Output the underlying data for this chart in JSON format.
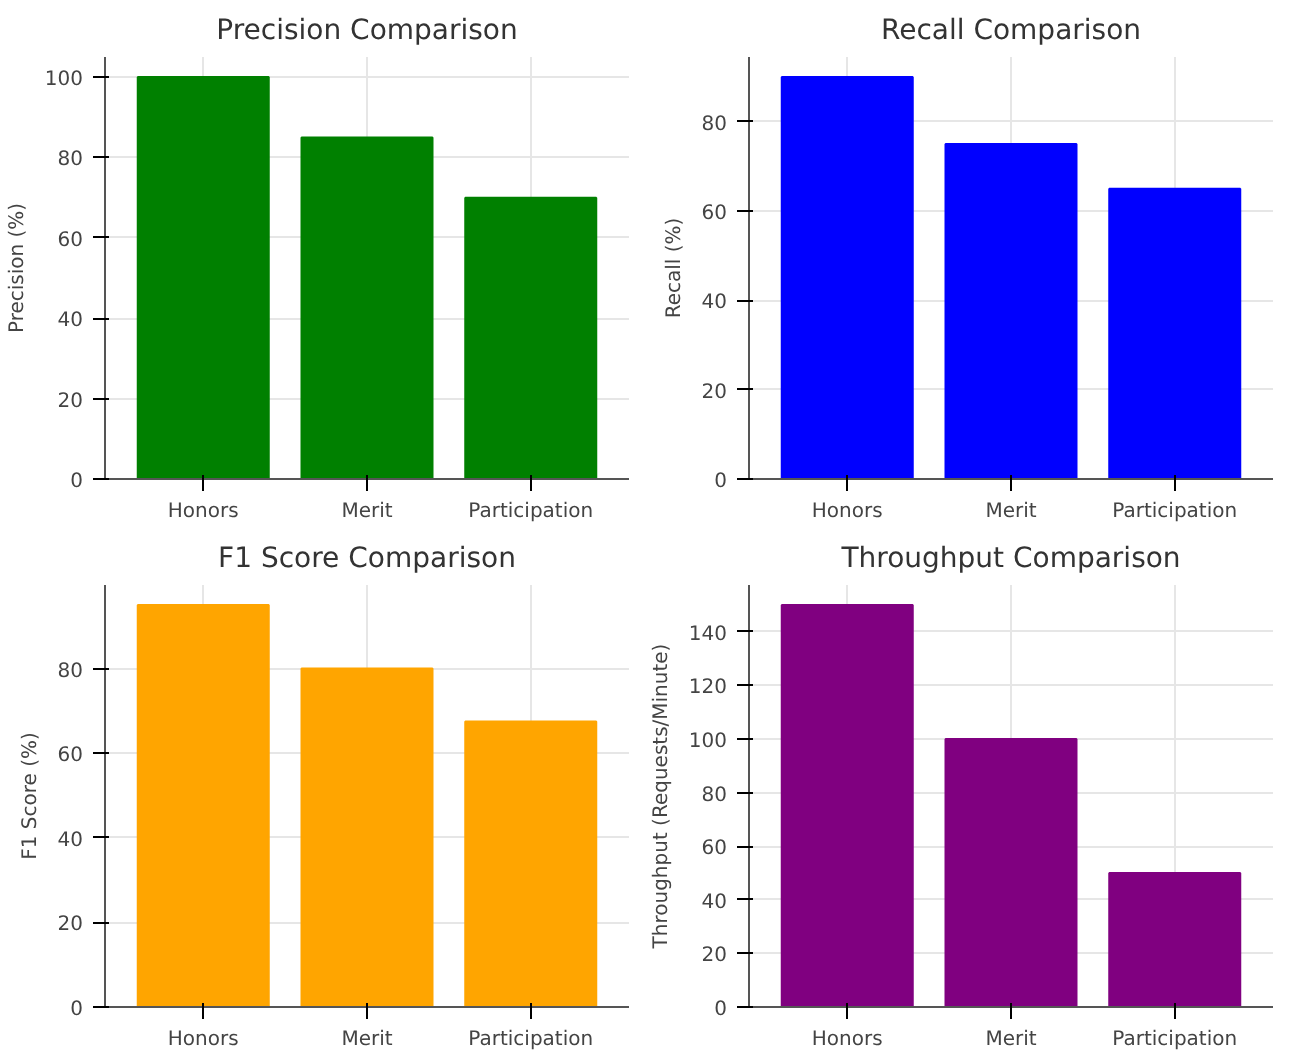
{
  "chart_data": [
    {
      "type": "bar",
      "title": "Precision Comparison",
      "ylabel": "Precision (%)",
      "categories": [
        "Honors",
        "Merit",
        "Participation"
      ],
      "values": [
        100,
        85,
        70
      ],
      "color": "#008000",
      "ylim": [
        0,
        105
      ],
      "yticks": [
        0,
        20,
        40,
        60,
        80,
        100
      ],
      "grid": true
    },
    {
      "type": "bar",
      "title": "Recall Comparison",
      "ylabel": "Recall (%)",
      "categories": [
        "Honors",
        "Merit",
        "Participation"
      ],
      "values": [
        90,
        75,
        65
      ],
      "color": "#0000ff",
      "ylim": [
        0,
        94.5
      ],
      "yticks": [
        0,
        20,
        40,
        60,
        80
      ],
      "grid": true
    },
    {
      "type": "bar",
      "title": "F1 Score Comparison",
      "ylabel": "F1 Score (%)",
      "categories": [
        "Honors",
        "Merit",
        "Participation"
      ],
      "values": [
        95,
        80,
        67.5
      ],
      "color": "#ffa500",
      "ylim": [
        0,
        99.75
      ],
      "yticks": [
        0,
        20,
        40,
        60,
        80
      ],
      "grid": true
    },
    {
      "type": "bar",
      "title": "Throughput Comparison",
      "ylabel": "Throughput (Requests/Minute)",
      "categories": [
        "Honors",
        "Merit",
        "Participation"
      ],
      "values": [
        150,
        100,
        50
      ],
      "color": "#800080",
      "ylim": [
        0,
        157.5
      ],
      "yticks": [
        0,
        20,
        40,
        60,
        80,
        100,
        120,
        140
      ],
      "grid": true
    }
  ]
}
